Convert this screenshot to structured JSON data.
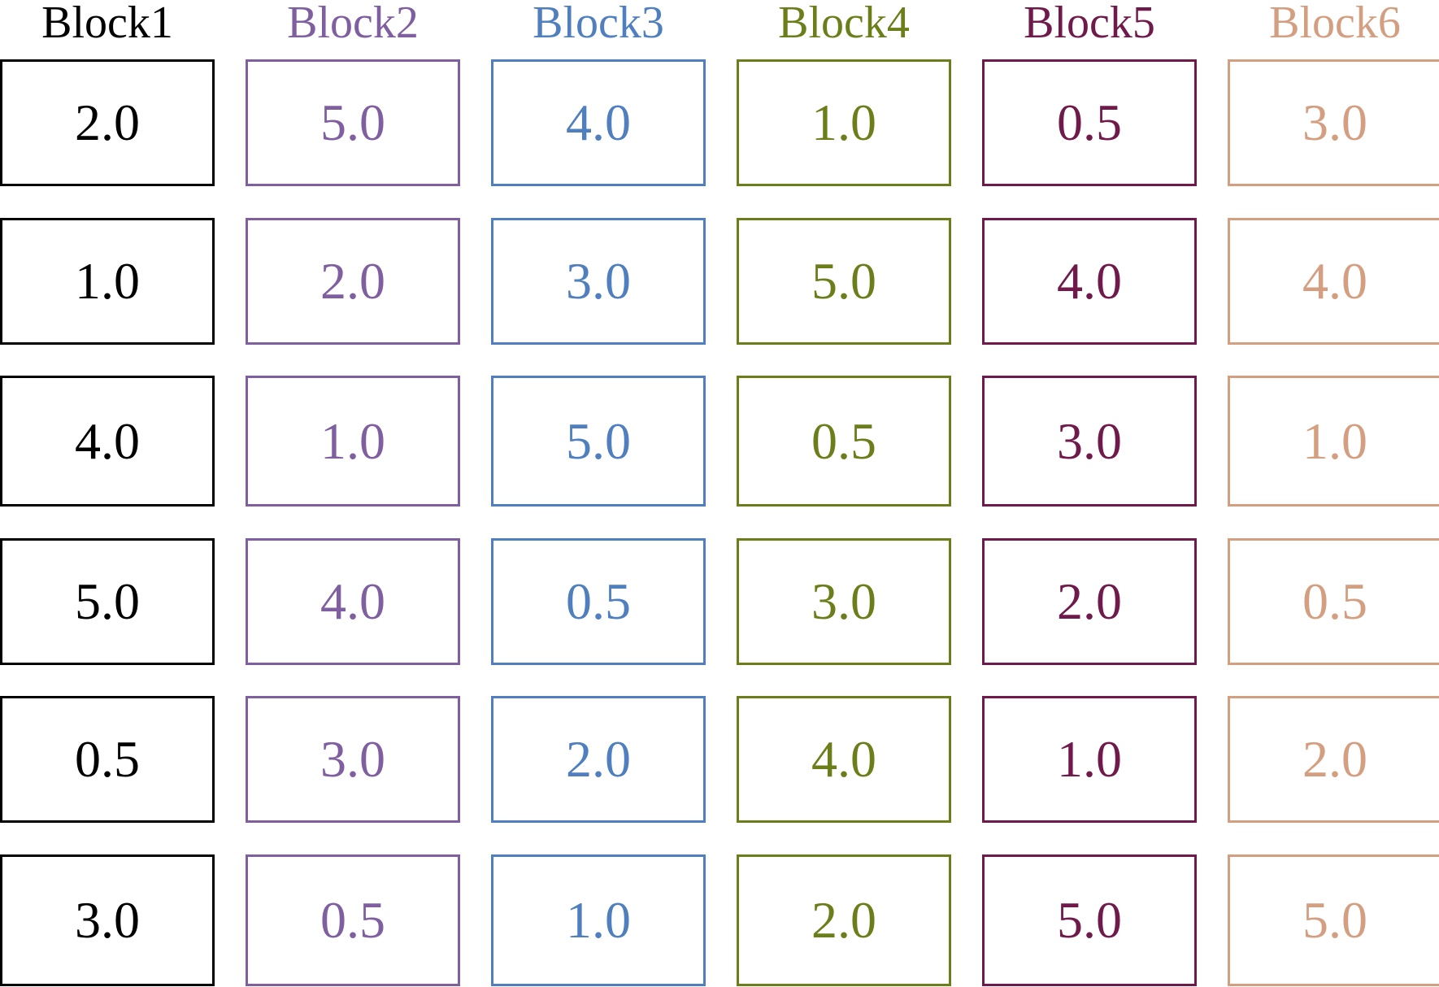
{
  "blocks": [
    {
      "label": "Block1",
      "color": "#000000",
      "values": [
        "2.0",
        "1.0",
        "4.0",
        "5.0",
        "0.5",
        "3.0"
      ]
    },
    {
      "label": "Block2",
      "color": "#7f5fa0",
      "values": [
        "5.0",
        "2.0",
        "1.0",
        "4.0",
        "3.0",
        "0.5"
      ]
    },
    {
      "label": "Block3",
      "color": "#4f7fbf",
      "values": [
        "4.0",
        "3.0",
        "5.0",
        "0.5",
        "2.0",
        "1.0"
      ]
    },
    {
      "label": "Block4",
      "color": "#6a7f1a",
      "values": [
        "1.0",
        "5.0",
        "0.5",
        "3.0",
        "4.0",
        "2.0"
      ]
    },
    {
      "label": "Block5",
      "color": "#6f1a4a",
      "values": [
        "0.5",
        "4.0",
        "3.0",
        "2.0",
        "1.0",
        "5.0"
      ]
    },
    {
      "label": "Block6",
      "color": "#d49e80",
      "values": [
        "3.0",
        "4.0",
        "1.0",
        "0.5",
        "2.0",
        "5.0"
      ]
    }
  ]
}
